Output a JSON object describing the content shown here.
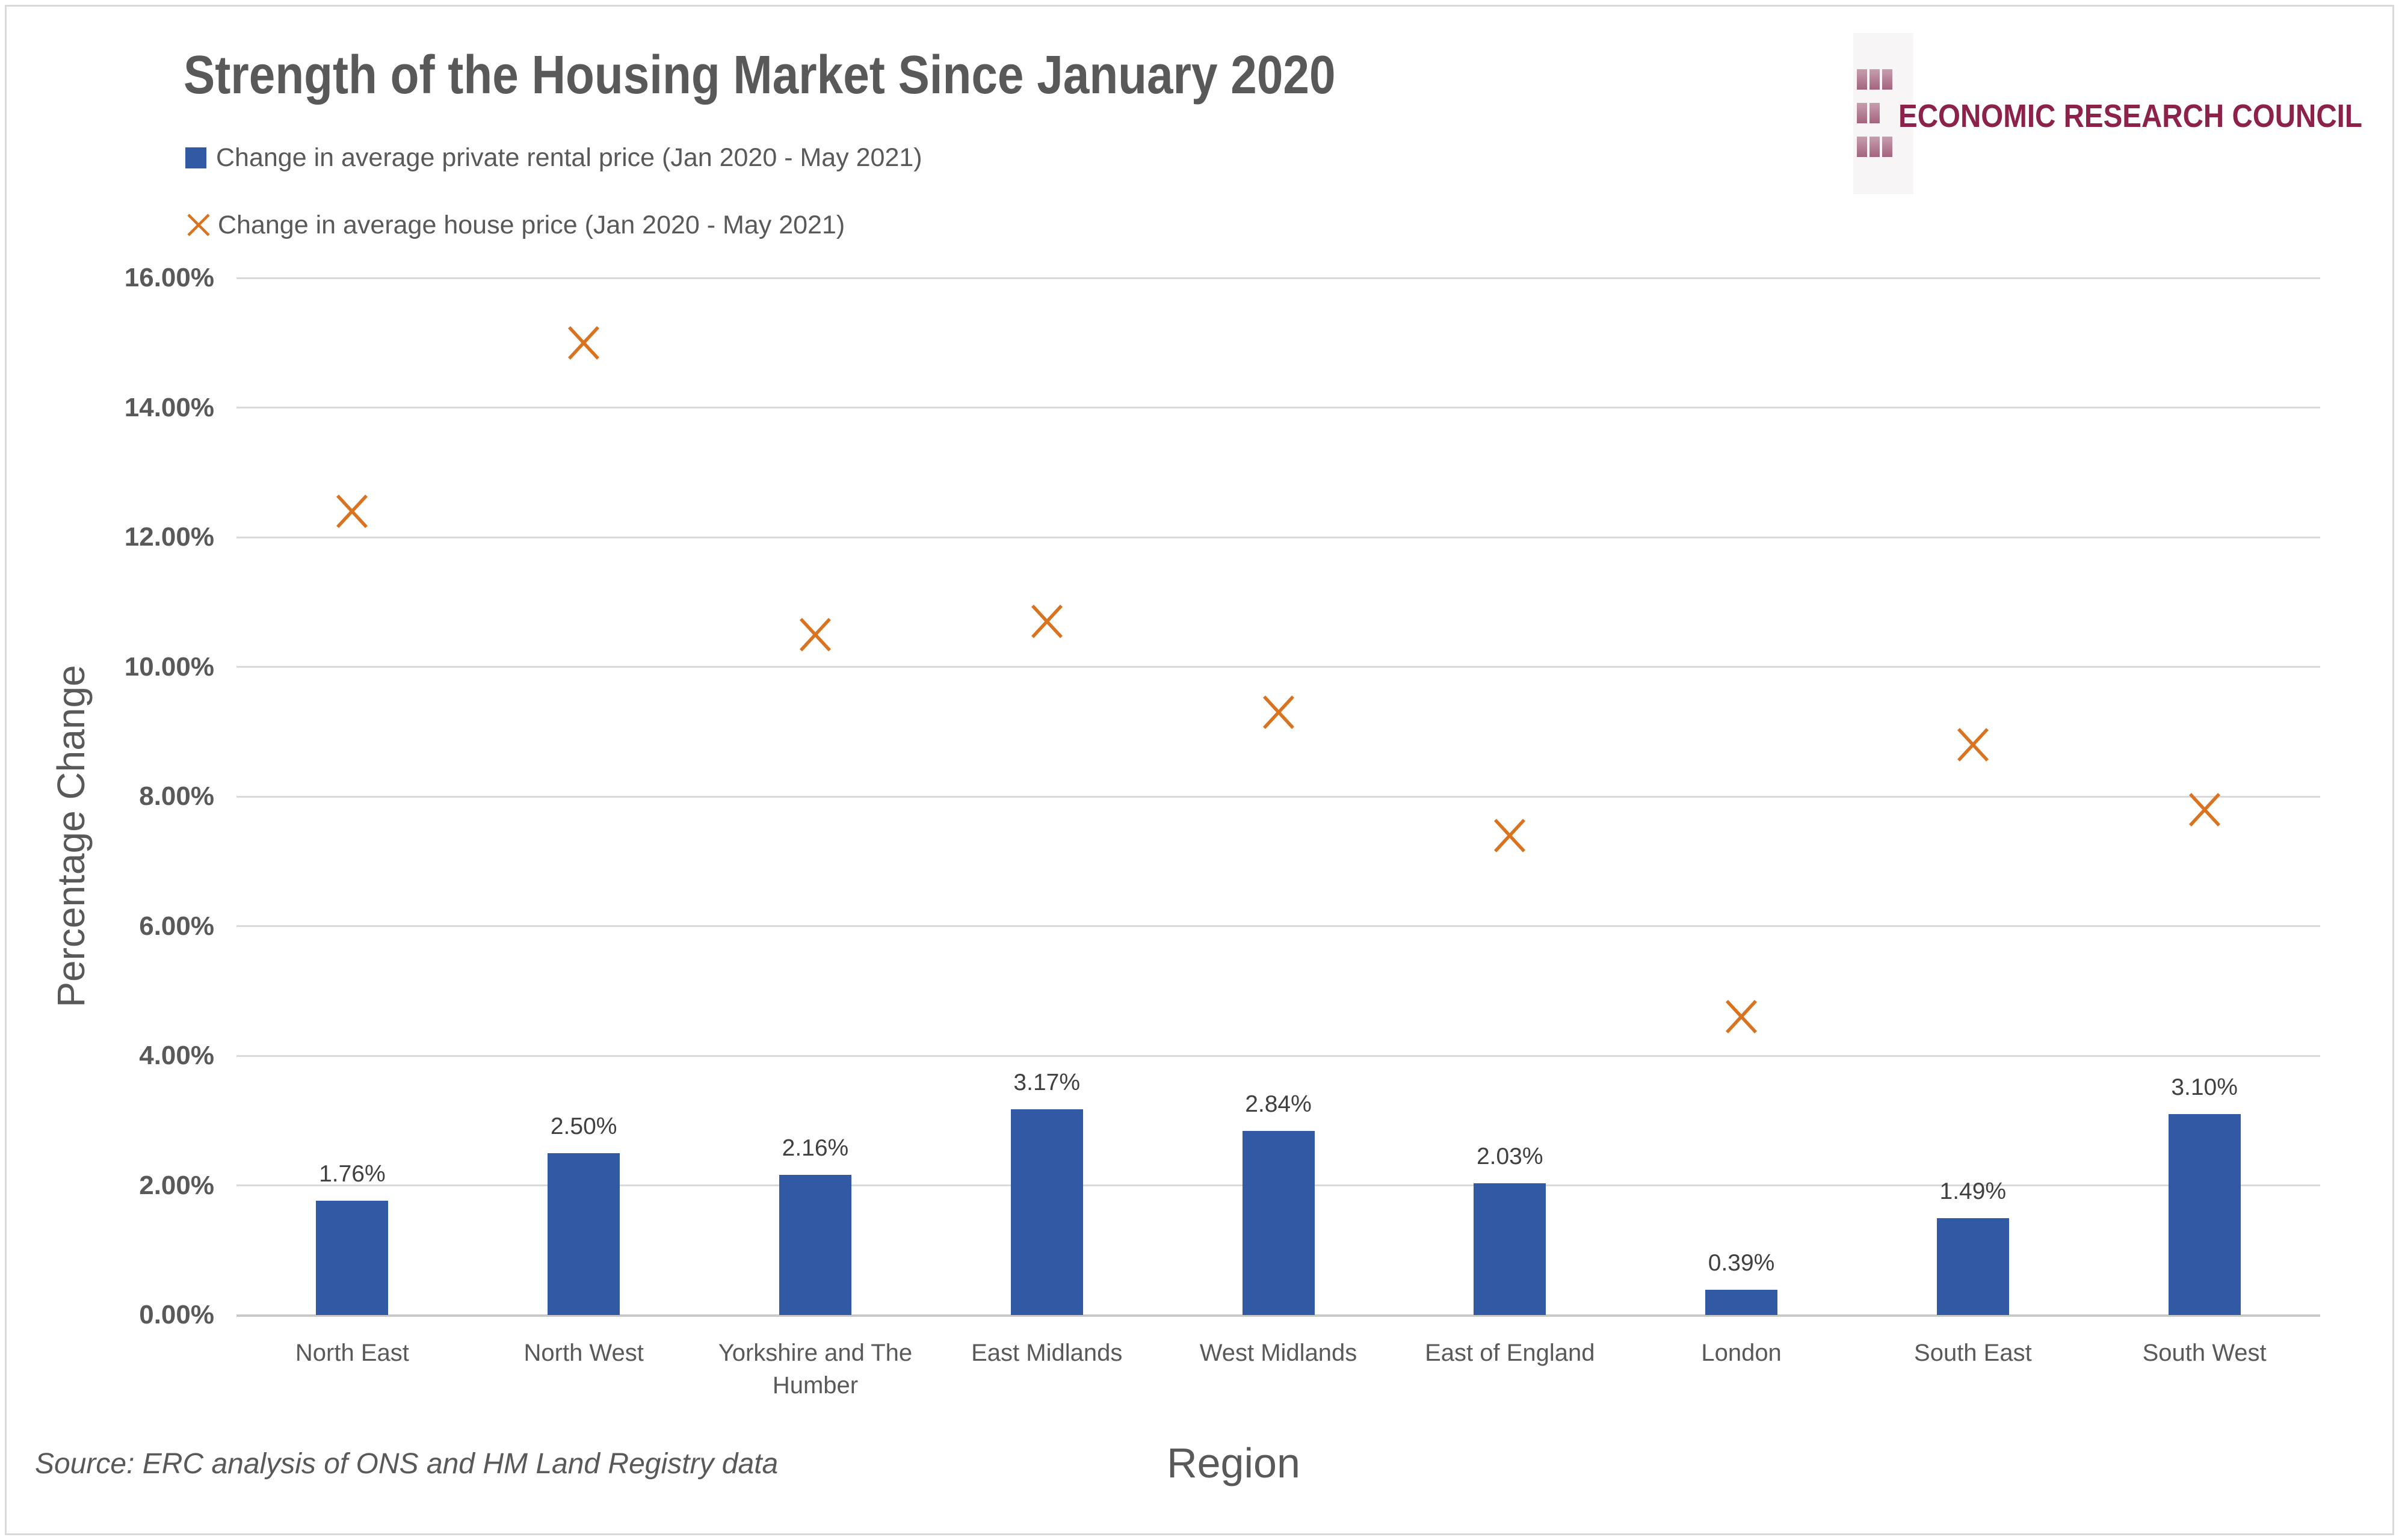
{
  "title": "Strength of the Housing Market Since January 2020",
  "logo": {
    "text": "ECONOMIC RESEARCH COUNCIL",
    "text_color": "#8c2149",
    "square_color": "#b57a92"
  },
  "source": "Source: ERC analysis of ONS and HM Land Registry data",
  "colors": {
    "bar_blue": "#3159a4",
    "marker_orange": "#d9731f",
    "gridline": "#d9d9d9",
    "text_gray": "#595959"
  },
  "chart_data": {
    "type": "bar",
    "title": "Strength of the Housing Market Since January 2020",
    "xlabel": "Region",
    "ylabel": "Percentage Change",
    "ylim": [
      0,
      16
    ],
    "ytick_step": 2,
    "ytick_format": "two-decimal-percent",
    "grid": true,
    "legend_position": "top-left",
    "categories": [
      "North East",
      "North West",
      "Yorkshire and The Humber",
      "East Midlands",
      "West Midlands",
      "East of England",
      "London",
      "South East",
      "South West"
    ],
    "series": [
      {
        "name": "Change in average private rental price (Jan 2020 - May 2021)",
        "type": "bar",
        "marker": "square",
        "color": "#3159a4",
        "values": [
          1.76,
          2.5,
          2.16,
          3.17,
          2.84,
          2.03,
          0.39,
          1.49,
          3.1
        ],
        "labels": [
          "1.76%",
          "2.50%",
          "2.16%",
          "3.17%",
          "2.84%",
          "2.03%",
          "0.39%",
          "1.49%",
          "3.10%"
        ]
      },
      {
        "name": "Change in average house price (Jan 2020 - May 2021)",
        "type": "scatter",
        "marker": "x",
        "color": "#d9731f",
        "values": [
          12.4,
          15.0,
          10.5,
          10.7,
          9.3,
          7.4,
          4.6,
          8.8,
          7.8
        ]
      }
    ]
  }
}
